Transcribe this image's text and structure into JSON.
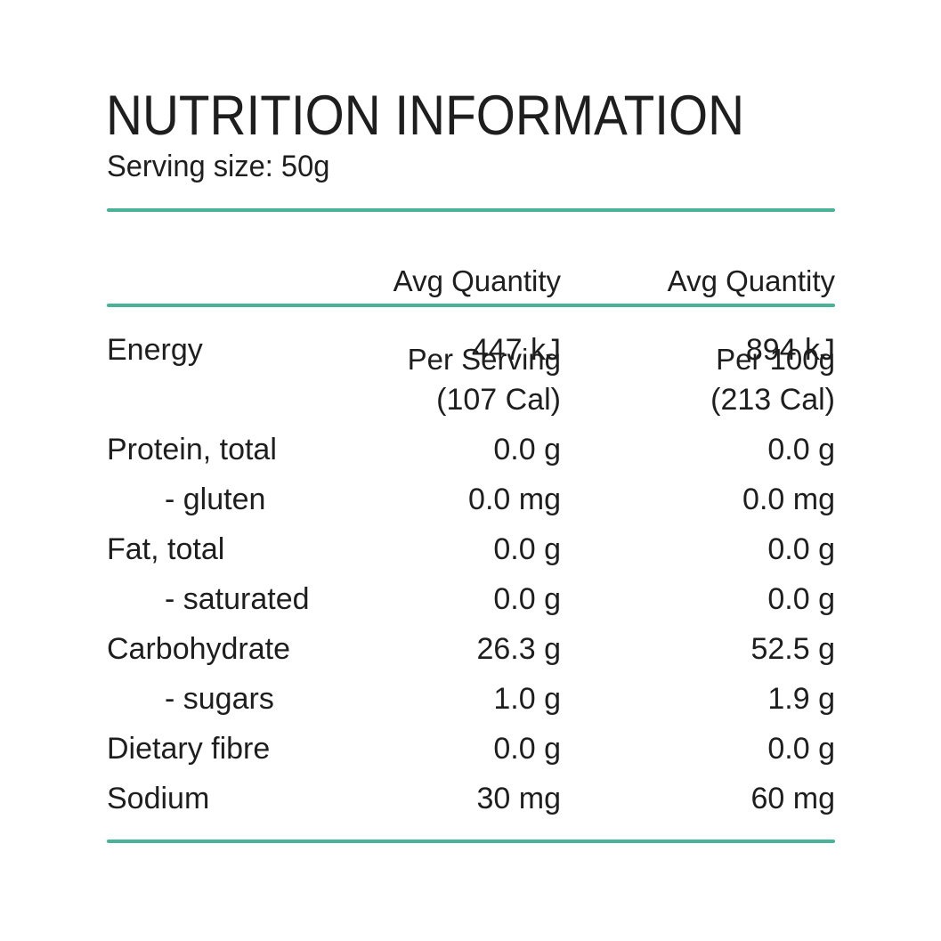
{
  "accent_color": "#48b399",
  "text_color": "#1e1e1e",
  "header": {
    "title": "NUTRITION INFORMATION",
    "serving_size": "Serving size: 50g"
  },
  "table": {
    "column_headers": {
      "per_serving": {
        "line1": "Avg Quantity",
        "line2": "Per Serving"
      },
      "per_100g": {
        "line1": "Avg Quantity",
        "line2": "Per 100g"
      }
    },
    "rows": [
      {
        "label": "Energy",
        "per_serving": "447 kJ",
        "per_100g": "894 kJ",
        "indent": false
      },
      {
        "label": "",
        "per_serving": "(107 Cal)",
        "per_100g": "(213 Cal)",
        "indent": false
      },
      {
        "label": "Protein, total",
        "per_serving": "0.0 g",
        "per_100g": "0.0 g",
        "indent": false
      },
      {
        "label": "- gluten",
        "per_serving": "0.0 mg",
        "per_100g": "0.0 mg",
        "indent": true
      },
      {
        "label": "Fat, total",
        "per_serving": "0.0 g",
        "per_100g": "0.0 g",
        "indent": false
      },
      {
        "label": "- saturated",
        "per_serving": "0.0 g",
        "per_100g": "0.0 g",
        "indent": true
      },
      {
        "label": "Carbohydrate",
        "per_serving": "26.3 g",
        "per_100g": "52.5 g",
        "indent": false
      },
      {
        "label": "- sugars",
        "per_serving": "1.0 g",
        "per_100g": "1.9 g",
        "indent": true
      },
      {
        "label": "Dietary fibre",
        "per_serving": "0.0 g",
        "per_100g": "0.0 g",
        "indent": false
      },
      {
        "label": "Sodium",
        "per_serving": "30 mg",
        "per_100g": "60 mg",
        "indent": false
      }
    ]
  }
}
